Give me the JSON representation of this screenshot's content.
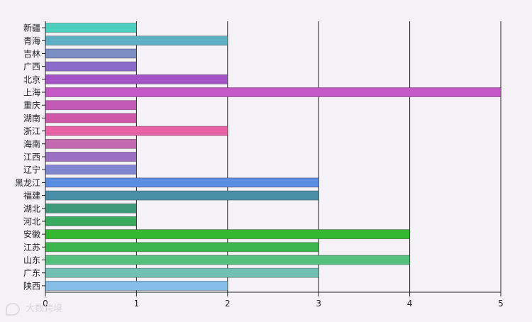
{
  "chart_data": {
    "type": "bar",
    "orientation": "horizontal",
    "title": "",
    "xlabel": "",
    "ylabel": "",
    "xlim": [
      0,
      5
    ],
    "xticks": [
      0,
      1,
      2,
      3,
      4,
      5
    ],
    "grid": "vertical",
    "categories": [
      "新疆",
      "青海",
      "吉林",
      "广西",
      "北京",
      "上海",
      "重庆",
      "湖南",
      "浙江",
      "海南",
      "江西",
      "辽宁",
      "黑龙江",
      "福建",
      "湖北",
      "河北",
      "安徽",
      "江苏",
      "山东",
      "广东",
      "陕西"
    ],
    "values": [
      1,
      2,
      1,
      1,
      2,
      5,
      1,
      1,
      2,
      1,
      1,
      1,
      3,
      3,
      1,
      1,
      4,
      3,
      4,
      3,
      2
    ],
    "colors": [
      "#4dcfc0",
      "#5fb0c4",
      "#7c8fc4",
      "#8a6cc9",
      "#a552c6",
      "#c458c6",
      "#c45ab8",
      "#cf58a8",
      "#e862a8",
      "#c46ab0",
      "#9b70c4",
      "#7f86d0",
      "#5b8ee0",
      "#4a8fa8",
      "#3f9a7c",
      "#3aaa5f",
      "#34b830",
      "#3cb54c",
      "#55c07c",
      "#70c0b4",
      "#84bee8"
    ]
  },
  "watermark": {
    "text": "大数跨境",
    "icon": "watermark-logo-icon"
  }
}
